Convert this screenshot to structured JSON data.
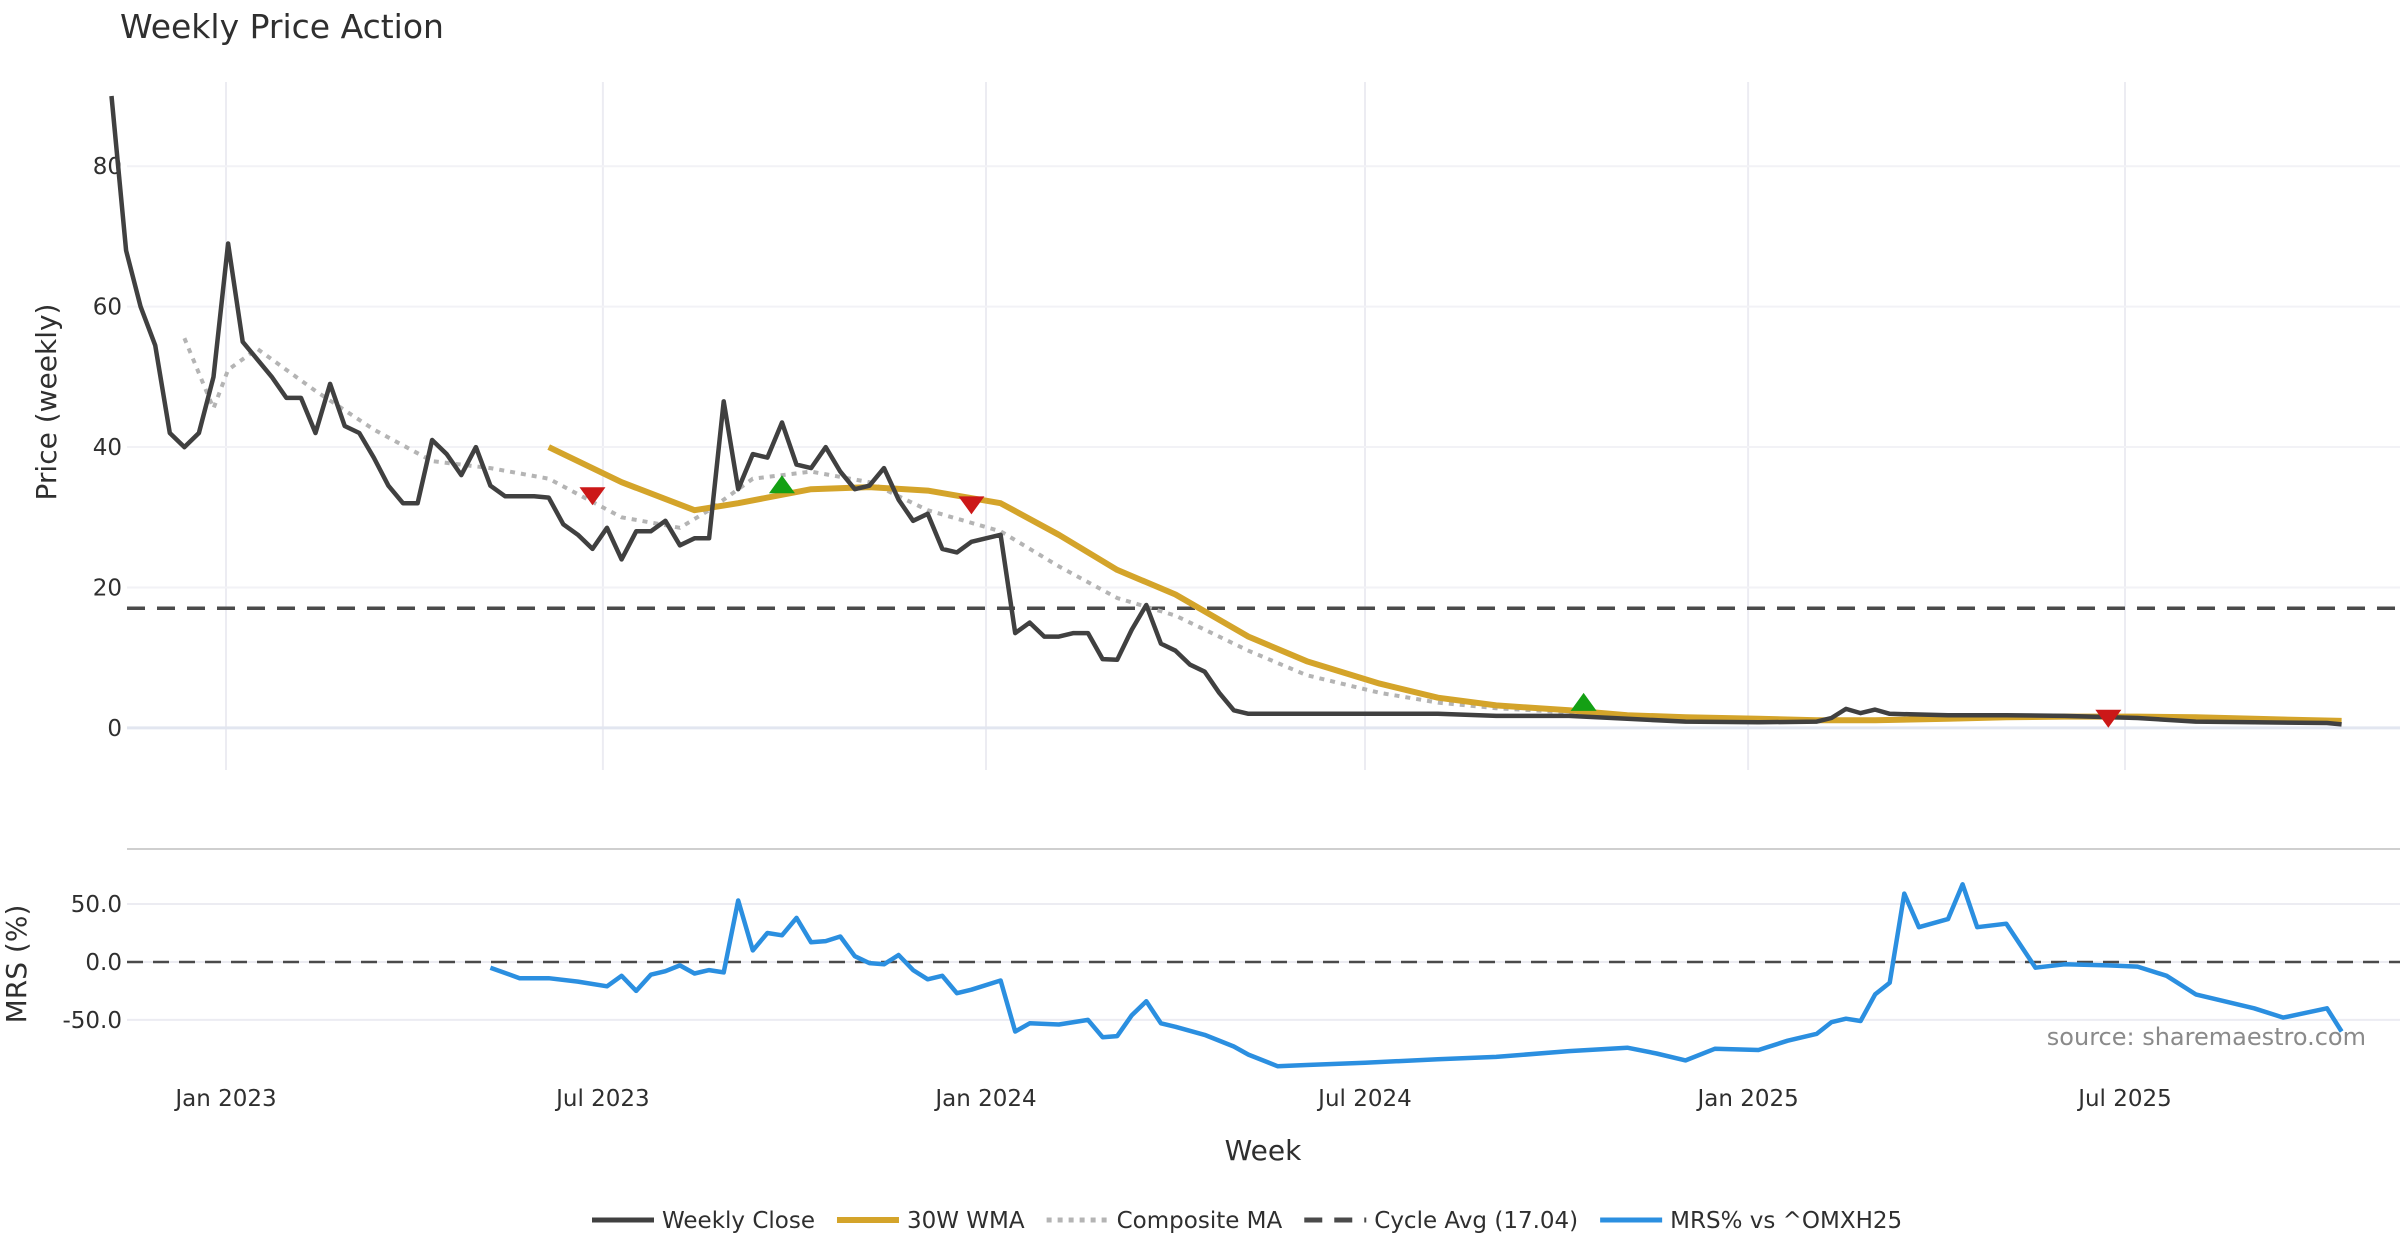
{
  "chart_data": [
    {
      "type": "line",
      "title": "Weekly Price Action",
      "xlabel": "Week",
      "ylabel": "Price (weekly)",
      "x_ticks": [
        "Jan 2023",
        "Jul 2023",
        "Jan 2024",
        "Jul 2024",
        "Jan 2025",
        "Jul 2025"
      ],
      "x_range": [
        "2022-11-07",
        "2025-10-13"
      ],
      "ylim": [
        -6,
        92
      ],
      "y_ticks": [
        0,
        20,
        40,
        60,
        80
      ],
      "grid": true,
      "series": [
        {
          "name": "Weekly Close",
          "color": "#404040",
          "x": [
            "2022-11-07",
            "2022-11-14",
            "2022-11-21",
            "2022-11-28",
            "2022-12-05",
            "2022-12-12",
            "2022-12-19",
            "2022-12-26",
            "2023-01-02",
            "2023-01-09",
            "2023-01-16",
            "2023-01-23",
            "2023-01-30",
            "2023-02-06",
            "2023-02-13",
            "2023-02-20",
            "2023-02-27",
            "2023-03-06",
            "2023-03-13",
            "2023-03-20",
            "2023-03-27",
            "2023-04-03",
            "2023-04-10",
            "2023-04-17",
            "2023-04-24",
            "2023-05-01",
            "2023-05-08",
            "2023-05-15",
            "2023-05-22",
            "2023-05-29",
            "2023-06-05",
            "2023-06-12",
            "2023-06-19",
            "2023-06-26",
            "2023-07-03",
            "2023-07-10",
            "2023-07-17",
            "2023-07-24",
            "2023-07-31",
            "2023-08-07",
            "2023-08-14",
            "2023-08-21",
            "2023-08-28",
            "2023-09-04",
            "2023-09-11",
            "2023-09-18",
            "2023-09-25",
            "2023-10-02",
            "2023-10-09",
            "2023-10-16",
            "2023-10-23",
            "2023-10-30",
            "2023-11-06",
            "2023-11-13",
            "2023-11-20",
            "2023-11-27",
            "2023-12-04",
            "2023-12-11",
            "2023-12-18",
            "2023-12-25",
            "2024-01-01",
            "2024-01-08",
            "2024-01-15",
            "2024-01-22",
            "2024-01-29",
            "2024-02-05",
            "2024-02-12",
            "2024-02-19",
            "2024-02-26",
            "2024-03-04",
            "2024-03-11",
            "2024-03-18",
            "2024-03-25",
            "2024-04-01",
            "2024-04-08",
            "2024-04-15",
            "2024-04-22",
            "2024-04-29",
            "2024-05-06",
            "2024-05-13",
            "2024-05-20",
            "2024-06-03",
            "2024-07-01",
            "2024-08-05",
            "2024-09-02",
            "2024-10-07",
            "2024-11-04",
            "2024-12-02",
            "2025-01-06",
            "2025-02-03",
            "2025-02-10",
            "2025-02-17",
            "2025-02-24",
            "2025-03-03",
            "2025-03-10",
            "2025-04-07",
            "2025-05-05",
            "2025-06-02",
            "2025-07-07",
            "2025-08-04",
            "2025-09-01",
            "2025-10-06",
            "2025-10-13"
          ],
          "y": [
            90,
            68,
            60,
            54.5,
            42,
            40,
            42,
            50,
            69,
            55,
            52.5,
            50,
            47,
            47,
            42,
            49,
            43,
            42,
            38.5,
            34.5,
            32,
            32,
            41,
            39,
            36,
            40,
            34.5,
            33,
            33,
            33,
            32.8,
            29,
            27.5,
            25.5,
            28.5,
            24,
            28,
            28,
            29.5,
            26,
            27,
            27,
            46.5,
            34,
            39,
            38.5,
            43.5,
            37.5,
            37,
            40,
            36.5,
            34,
            34.5,
            37,
            32.5,
            29.5,
            30.5,
            25.5,
            25,
            26.5,
            27,
            27.5,
            13.5,
            15,
            13,
            13,
            13.5,
            13.5,
            9.8,
            9.7,
            14,
            17.5,
            12,
            11,
            9,
            8,
            5,
            2.5,
            2,
            2,
            2,
            2,
            2,
            2,
            1.7,
            1.7,
            1.3,
            0.9,
            0.8,
            0.9,
            1.4,
            2.7,
            2.1,
            2.6,
            2.0,
            1.8,
            1.8,
            1.7,
            1.4,
            0.9,
            0.8,
            0.7,
            0.5
          ]
        },
        {
          "name": "30W WMA",
          "color": "#d4a42a",
          "x": [
            "2023-06-05",
            "2023-07-10",
            "2023-08-14",
            "2023-09-04",
            "2023-10-09",
            "2023-11-06",
            "2023-12-04",
            "2024-01-08",
            "2024-02-05",
            "2024-03-04",
            "2024-04-01",
            "2024-05-06",
            "2024-06-03",
            "2024-07-08",
            "2024-08-05",
            "2024-09-02",
            "2024-10-07",
            "2024-11-04",
            "2024-12-02",
            "2025-01-06",
            "2025-02-03",
            "2025-03-03",
            "2025-04-07",
            "2025-05-05",
            "2025-06-02",
            "2025-07-07",
            "2025-08-04",
            "2025-09-01",
            "2025-10-13"
          ],
          "y": [
            40,
            35,
            31,
            32,
            34,
            34.3,
            33.8,
            32,
            27.5,
            22.5,
            19,
            13,
            9.5,
            6.3,
            4.3,
            3.2,
            2.5,
            1.8,
            1.5,
            1.3,
            1.1,
            1.1,
            1.3,
            1.5,
            1.6,
            1.6,
            1.5,
            1.3,
            1.0
          ]
        },
        {
          "name": "Composite MA",
          "color": "#b4b4b4",
          "x": [
            "2022-12-12",
            "2022-12-26",
            "2023-01-02",
            "2023-01-16",
            "2023-02-13",
            "2023-03-13",
            "2023-04-10",
            "2023-05-08",
            "2023-06-05",
            "2023-07-10",
            "2023-08-07",
            "2023-08-21",
            "2023-09-11",
            "2023-10-09",
            "2023-11-06",
            "2023-12-04",
            "2024-01-08",
            "2024-02-05",
            "2024-03-04",
            "2024-04-01",
            "2024-05-06",
            "2024-06-03",
            "2024-07-08",
            "2024-08-05",
            "2024-09-02",
            "2024-10-07",
            "2024-11-04",
            "2024-12-02",
            "2025-01-06",
            "2025-02-03",
            "2025-03-03",
            "2025-04-07",
            "2025-05-05",
            "2025-06-02",
            "2025-07-07"
          ],
          "y": [
            55.5,
            45.5,
            51,
            54,
            48,
            42.5,
            38,
            37,
            35.5,
            30,
            28.5,
            31,
            35.5,
            36.5,
            35,
            31,
            28,
            23,
            18.5,
            16,
            11,
            7.5,
            5,
            3.6,
            2.8,
            2.2,
            1.7,
            1.4,
            1.2,
            1.0,
            1.0,
            1.5,
            1.6,
            1.6,
            1.5
          ]
        },
        {
          "name": "Cycle Avg (17.04)",
          "color": "#4a4a4a",
          "value": 17.04
        }
      ],
      "markers": [
        {
          "type": "sell",
          "x": "2023-06-26",
          "y": 33,
          "color": "#cc1818"
        },
        {
          "type": "buy",
          "x": "2023-09-25",
          "y": 34.7,
          "color": "#14a014"
        },
        {
          "type": "sell",
          "x": "2023-12-25",
          "y": 31.7,
          "color": "#cc1818"
        },
        {
          "type": "buy",
          "x": "2024-10-14",
          "y": 3.7,
          "color": "#14a014"
        },
        {
          "type": "sell",
          "x": "2025-06-23",
          "y": 1.3,
          "color": "#cc1818"
        }
      ]
    },
    {
      "type": "line",
      "title": "",
      "xlabel": "Week",
      "ylabel": "MRS (%)",
      "ylim": [
        -95,
        88
      ],
      "y_ticks": [
        "50.0",
        "0.0",
        "-50.0"
      ],
      "y_tick_values": [
        50,
        0,
        -50
      ],
      "grid": true,
      "series": [
        {
          "name": "MRS% vs ^OMXH25",
          "color": "#2b8fe0",
          "x": [
            "2023-05-08",
            "2023-05-22",
            "2023-06-05",
            "2023-06-19",
            "2023-07-03",
            "2023-07-10",
            "2023-07-17",
            "2023-07-24",
            "2023-07-31",
            "2023-08-07",
            "2023-08-14",
            "2023-08-21",
            "2023-08-28",
            "2023-09-04",
            "2023-09-11",
            "2023-09-18",
            "2023-09-25",
            "2023-10-02",
            "2023-10-09",
            "2023-10-16",
            "2023-10-23",
            "2023-10-30",
            "2023-11-06",
            "2023-11-13",
            "2023-11-20",
            "2023-11-27",
            "2023-12-04",
            "2023-12-11",
            "2023-12-18",
            "2023-12-25",
            "2024-01-08",
            "2024-01-15",
            "2024-01-22",
            "2024-02-05",
            "2024-02-19",
            "2024-02-26",
            "2024-03-04",
            "2024-03-11",
            "2024-03-18",
            "2024-03-25",
            "2024-04-01",
            "2024-04-15",
            "2024-04-29",
            "2024-05-06",
            "2024-05-20",
            "2024-06-03",
            "2024-07-01",
            "2024-08-05",
            "2024-09-02",
            "2024-10-07",
            "2024-11-04",
            "2024-11-18",
            "2024-12-02",
            "2024-12-16",
            "2025-01-06",
            "2025-01-20",
            "2025-02-03",
            "2025-02-10",
            "2025-02-17",
            "2025-02-24",
            "2025-03-03",
            "2025-03-10",
            "2025-03-17",
            "2025-03-24",
            "2025-04-07",
            "2025-04-14",
            "2025-04-21",
            "2025-05-05",
            "2025-05-19",
            "2025-06-02",
            "2025-06-23",
            "2025-07-07",
            "2025-07-21",
            "2025-08-04",
            "2025-09-01",
            "2025-09-15",
            "2025-10-06",
            "2025-10-13"
          ],
          "y": [
            -5,
            -14,
            -14,
            -17,
            -21,
            -12,
            -25,
            -11,
            -8,
            -3,
            -10,
            -7,
            -9,
            53,
            10,
            25,
            23,
            38,
            17,
            18,
            22,
            5,
            -1,
            -2,
            6,
            -7,
            -15,
            -12,
            -27,
            -24,
            -16,
            -60,
            -53,
            -54,
            -50,
            -65,
            -64,
            -46,
            -34,
            -53,
            -56,
            -63,
            -73,
            -80,
            -90,
            -89,
            -87,
            -84,
            -82,
            -77,
            -74,
            -79,
            -85,
            -75,
            -76,
            -68,
            -62,
            -52,
            -49,
            -51,
            -28,
            -18,
            59,
            30,
            37,
            67,
            30,
            33,
            -5,
            -2,
            -3,
            -4,
            -12,
            -28,
            -40,
            -48,
            -40,
            -60
          ]
        },
        {
          "name": "",
          "color": "#4a4a4a",
          "value": 0
        }
      ]
    }
  ],
  "source": "source: sharemaestro.com",
  "legend": {
    "placement": "bottom-center",
    "items": [
      {
        "label": "Weekly Close",
        "style": "solid",
        "color": "#404040"
      },
      {
        "label": "30W WMA",
        "style": "solid",
        "color": "#d4a42a"
      },
      {
        "label": "Composite MA",
        "style": "dotted",
        "color": "#b4b4b4"
      },
      {
        "label": "Cycle Avg (17.04)",
        "style": "dashed",
        "color": "#4a4a4a"
      },
      {
        "label": "MRS% vs ^OMXH25",
        "style": "solid",
        "color": "#2b8fe0"
      }
    ]
  }
}
